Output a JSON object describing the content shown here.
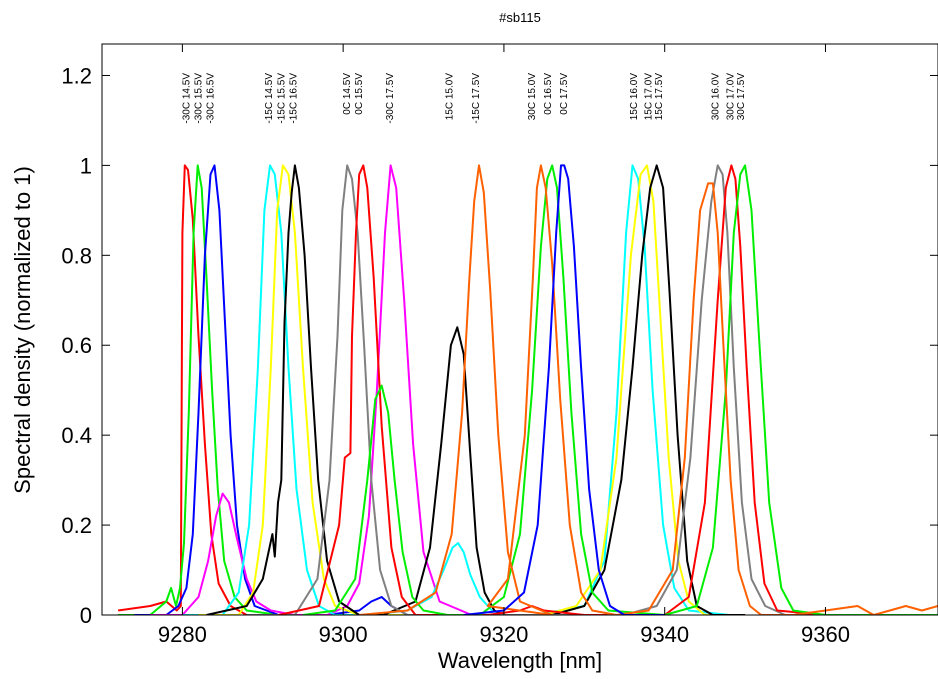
{
  "chart_data": {
    "type": "line",
    "title": "#sb115",
    "xlabel": "Wavelength [nm]",
    "ylabel": "Spectral density (normalized to 1)",
    "xlim": [
      9270,
      9374
    ],
    "ylim": [
      0,
      1.27
    ],
    "xticks": [
      9280,
      9300,
      9320,
      9340,
      9360
    ],
    "xtick_labels": [
      "9280",
      "9300",
      "9320",
      "9340",
      "9360"
    ],
    "yticks": [
      0,
      0.2,
      0.4,
      0.6,
      0.8,
      1,
      1.2
    ],
    "ytick_labels": [
      "0",
      "0.2",
      "0.4",
      "0.6",
      "0.8",
      "1",
      "1.2"
    ],
    "grid": false,
    "peak_labels": [
      {
        "text": "-30C 14.5V",
        "x": 9280.5
      },
      {
        "text": "-30C 15.5V",
        "x": 9282.0
      },
      {
        "text": "-30C 16.5V",
        "x": 9283.5
      },
      {
        "text": "-15C 14.5V",
        "x": 9290.8
      },
      {
        "text": "-15C 15.5V",
        "x": 9292.3
      },
      {
        "text": "-15C 16.5V",
        "x": 9293.8
      },
      {
        "text": "0C 14.5V",
        "x": 9300.5
      },
      {
        "text": "0C 15.5V",
        "x": 9302.0
      },
      {
        "text": "-30C 17.5V",
        "x": 9305.8
      },
      {
        "text": "15C 15.0V",
        "x": 9313.2
      },
      {
        "text": "-15C 17.5V",
        "x": 9316.5
      },
      {
        "text": "30C 15.0V",
        "x": 9323.5
      },
      {
        "text": "0C 16.5V",
        "x": 9325.5
      },
      {
        "text": "0C 17.5V",
        "x": 9327.5
      },
      {
        "text": "15C 16.0V",
        "x": 9336.2
      },
      {
        "text": "15C 17.0V",
        "x": 9338.0
      },
      {
        "text": "15C 17.5V",
        "x": 9339.3
      },
      {
        "text": "30C 16.0V",
        "x": 9346.3
      },
      {
        "text": "30C 17.0V",
        "x": 9348.2
      },
      {
        "text": "30C 17.5V",
        "x": 9349.5
      }
    ],
    "series": [
      {
        "color": "#ff0000",
        "x": [
          9272,
          9276,
          9278,
          9279.3,
          9279.8,
          9280.0,
          9280.3,
          9280.7,
          9281.3,
          9282.0,
          9282.8,
          9283.6,
          9284.5,
          9286,
          9288,
          9292,
          9300
        ],
        "y": [
          0.01,
          0.02,
          0.03,
          0.01,
          0.02,
          0.85,
          1.0,
          0.99,
          0.88,
          0.62,
          0.38,
          0.18,
          0.07,
          0.02,
          0.0,
          0.0,
          0.0
        ]
      },
      {
        "color": "#00ee00",
        "x": [
          9272,
          9276,
          9278.0,
          9278.6,
          9279.2,
          9279.7,
          9280.2,
          9280.8,
          9281.4,
          9281.9,
          9282.4,
          9283.0,
          9283.7,
          9284.4,
          9285.2,
          9286.5,
          9288,
          9292,
          9300
        ],
        "y": [
          0.0,
          0.0,
          0.03,
          0.06,
          0.02,
          0.06,
          0.16,
          0.45,
          0.85,
          1.0,
          0.95,
          0.75,
          0.5,
          0.28,
          0.12,
          0.04,
          0.01,
          0.0,
          0.0
        ]
      },
      {
        "color": "#0000ff",
        "x": [
          9274,
          9278,
          9279.5,
          9280.5,
          9281.3,
          9282.0,
          9282.8,
          9283.5,
          9284.0,
          9284.6,
          9285.3,
          9286.0,
          9286.8,
          9287.8,
          9289,
          9292,
          9298,
          9302,
          9303.5,
          9304.8,
          9306.0,
          9308,
          9312,
          9320
        ],
        "y": [
          0.0,
          0.0,
          0.02,
          0.06,
          0.18,
          0.45,
          0.8,
          0.98,
          1.0,
          0.9,
          0.65,
          0.4,
          0.2,
          0.08,
          0.02,
          0.0,
          0.0,
          0.01,
          0.03,
          0.04,
          0.02,
          0.0,
          0.0,
          0.0
        ]
      },
      {
        "color": "#ff00ff",
        "x": [
          9276,
          9280,
          9282.0,
          9283.2,
          9284.2,
          9285.0,
          9285.8,
          9286.8,
          9288.0,
          9289.2,
          9291,
          9294,
          9298,
          9300.5,
          9302.0,
          9303.2,
          9304.2,
          9305.2,
          9305.9,
          9306.6,
          9307.6,
          9308.7,
          9310,
          9312,
          9316,
          9320
        ],
        "y": [
          0.0,
          0.0,
          0.04,
          0.12,
          0.22,
          0.27,
          0.25,
          0.17,
          0.08,
          0.03,
          0.01,
          0.0,
          0.0,
          0.02,
          0.07,
          0.22,
          0.5,
          0.85,
          1.0,
          0.95,
          0.7,
          0.38,
          0.14,
          0.03,
          0.0,
          0.0
        ]
      },
      {
        "color": "#00ffff",
        "x": [
          9280,
          9285,
          9287.0,
          9288.3,
          9289.4,
          9290.2,
          9290.9,
          9291.5,
          9292.3,
          9293.2,
          9294.2,
          9295.5,
          9297.0,
          9299,
          9303,
          9308,
          9311.0,
          9312.5,
          9313.6,
          9314.3,
          9315.0,
          9315.8,
          9317.0,
          9318.5,
          9320,
          9324,
          9330,
          9332.5,
          9334.0,
          9335.2,
          9336.0,
          9336.7,
          9337.5,
          9338.5,
          9339.8,
          9341.2,
          9343,
          9348
        ],
        "y": [
          0.0,
          0.0,
          0.05,
          0.2,
          0.55,
          0.9,
          1.0,
          0.98,
          0.85,
          0.55,
          0.28,
          0.1,
          0.02,
          0.0,
          0.0,
          0.01,
          0.04,
          0.1,
          0.15,
          0.16,
          0.14,
          0.09,
          0.04,
          0.01,
          0.0,
          0.0,
          0.02,
          0.12,
          0.45,
          0.85,
          1.0,
          0.97,
          0.82,
          0.5,
          0.2,
          0.06,
          0.01,
          0.0
        ]
      },
      {
        "color": "#ffff00",
        "x": [
          9282,
          9287,
          9288.8,
          9290.0,
          9291.0,
          9291.8,
          9292.5,
          9293.2,
          9294.0,
          9295.0,
          9296.2,
          9297.6,
          9299,
          9302,
          9325,
          9329,
          9332.0,
          9334.0,
          9335.8,
          9337.0,
          9337.8,
          9338.6,
          9339.5,
          9340.5,
          9341.7,
          9343.0,
          9345,
          9350
        ],
        "y": [
          0.0,
          0.0,
          0.05,
          0.2,
          0.55,
          0.9,
          1.0,
          0.98,
          0.85,
          0.55,
          0.25,
          0.08,
          0.02,
          0.0,
          0.0,
          0.02,
          0.1,
          0.35,
          0.8,
          0.98,
          1.0,
          0.92,
          0.65,
          0.35,
          0.12,
          0.03,
          0.0,
          0.0
        ]
      },
      {
        "color": "#000000",
        "x": [
          9283,
          9288.0,
          9290.0,
          9291.2,
          9291.5,
          9291.9,
          9292.3,
          9292.7,
          9293.2,
          9293.6,
          9294.0,
          9294.5,
          9295.2,
          9296.0,
          9296.9,
          9298.0,
          9299.5,
          9302,
          9305,
          9309.0,
          9310.8,
          9312.2,
          9313.4,
          9314.2,
          9315.0,
          9315.8,
          9316.6,
          9317.6,
          9318.8,
          9320,
          9326,
          9330.0,
          9332.5,
          9334.6,
          9336.0,
          9337.2,
          9338.2,
          9339.0,
          9339.8,
          9340.6,
          9341.6,
          9342.8,
          9344,
          9346,
          9350
        ],
        "y": [
          0.0,
          0.02,
          0.08,
          0.18,
          0.13,
          0.25,
          0.3,
          0.65,
          0.85,
          0.94,
          1.0,
          0.95,
          0.8,
          0.55,
          0.3,
          0.12,
          0.03,
          0.0,
          0.0,
          0.03,
          0.15,
          0.38,
          0.6,
          0.64,
          0.58,
          0.36,
          0.15,
          0.05,
          0.01,
          0.0,
          0.0,
          0.02,
          0.1,
          0.3,
          0.55,
          0.8,
          0.95,
          1.0,
          0.95,
          0.72,
          0.4,
          0.12,
          0.02,
          0.0,
          0.0
        ]
      },
      {
        "color": "#808080",
        "x": [
          9288,
          9294,
          9296.8,
          9298.3,
          9299.3,
          9299.9,
          9300.5,
          9301.1,
          9301.8,
          9302.6,
          9303.5,
          9304.6,
          9306.0,
          9308,
          9312,
          9335,
          9339,
          9341.5,
          9343.2,
          9344.6,
          9345.8,
          9346.6,
          9347.2,
          9347.8,
          9348.6,
          9349.6,
          9350.8,
          9352.5,
          9355,
          9360
        ],
        "y": [
          0.0,
          0.0,
          0.08,
          0.3,
          0.62,
          0.9,
          1.0,
          0.97,
          0.85,
          0.6,
          0.3,
          0.1,
          0.02,
          0.0,
          0.0,
          0.0,
          0.02,
          0.1,
          0.35,
          0.7,
          0.92,
          1.0,
          0.98,
          0.85,
          0.55,
          0.25,
          0.08,
          0.02,
          0.0,
          0.0
        ]
      },
      {
        "color": "#ff0000",
        "x": [
          9292,
          9297,
          9299.5,
          9300.2,
          9300.9,
          9301.1,
          9301.6,
          9302.0,
          9302.5,
          9303.0,
          9303.8,
          9304.8,
          9306.0,
          9307.3,
          9309,
          9312,
          9318,
          9322,
          9323.5,
          9325,
          9330,
          9340,
          9343.0,
          9345.0,
          9346.6,
          9347.6,
          9348.3,
          9348.8,
          9349.4,
          9350.2,
          9351.2,
          9352.4,
          9354,
          9360,
          9374
        ],
        "y": [
          0.0,
          0.02,
          0.2,
          0.35,
          0.36,
          0.62,
          0.85,
          0.98,
          1.0,
          0.95,
          0.75,
          0.42,
          0.15,
          0.04,
          0.0,
          0.0,
          0.0,
          0.01,
          0.02,
          0.01,
          0.0,
          0.0,
          0.04,
          0.25,
          0.7,
          0.95,
          1.0,
          0.97,
          0.82,
          0.55,
          0.25,
          0.07,
          0.01,
          0.0,
          0.0
        ]
      },
      {
        "color": "#00ee00",
        "x": [
          9295,
          9299,
          9301.5,
          9303.0,
          9304.0,
          9304.8,
          9305.6,
          9306.4,
          9307.4,
          9308.6,
          9310,
          9313,
          9317,
          9320.0,
          9322.0,
          9323.5,
          9324.6,
          9325.4,
          9326.0,
          9326.6,
          9327.4,
          9328.4,
          9329.6,
          9331,
          9333,
          9340,
          9344.0,
          9346.0,
          9347.6,
          9348.6,
          9349.4,
          9350.0,
          9350.8,
          9351.8,
          9353.0,
          9354.5,
          9356,
          9360,
          9374
        ],
        "y": [
          0.0,
          0.01,
          0.08,
          0.3,
          0.48,
          0.51,
          0.45,
          0.3,
          0.14,
          0.04,
          0.01,
          0.0,
          0.0,
          0.04,
          0.18,
          0.5,
          0.82,
          0.97,
          1.0,
          0.95,
          0.75,
          0.45,
          0.18,
          0.05,
          0.01,
          0.0,
          0.02,
          0.15,
          0.5,
          0.85,
          0.98,
          1.0,
          0.9,
          0.6,
          0.25,
          0.06,
          0.01,
          0.0,
          0.0
        ]
      },
      {
        "color": "#ff6000",
        "x": [
          9302,
          9308,
          9311.5,
          9313.5,
          9314.8,
          9315.7,
          9316.3,
          9316.9,
          9317.5,
          9318.3,
          9319.3,
          9320.5,
          9322,
          9326,
          9318,
          9320.5,
          9322.6,
          9323.6,
          9324.1,
          9324.6,
          9325.2,
          9326.0,
          9327.0,
          9328.2,
          9329.6,
          9331,
          9334,
          9338.0,
          9341.0,
          9342.5,
          9343.6,
          9344.4,
          9345.4,
          9346.0,
          9346.6,
          9347.3,
          9348.2,
          9349.2,
          9350.6,
          9352,
          9356,
          9360,
          9364,
          9366,
          9368,
          9370,
          9372,
          9374
        ],
        "y": [
          0.0,
          0.01,
          0.05,
          0.18,
          0.45,
          0.75,
          0.92,
          1.0,
          0.94,
          0.72,
          0.4,
          0.14,
          0.03,
          0.0,
          0.02,
          0.08,
          0.4,
          0.75,
          0.95,
          1.0,
          0.95,
          0.78,
          0.48,
          0.2,
          0.05,
          0.01,
          0.0,
          0.01,
          0.1,
          0.35,
          0.7,
          0.9,
          0.96,
          0.96,
          0.85,
          0.6,
          0.3,
          0.1,
          0.02,
          0.0,
          0.0,
          0.01,
          0.02,
          0.0,
          0.01,
          0.02,
          0.01,
          0.02
        ]
      },
      {
        "color": "#0000ff",
        "x": [
          9315,
          9320,
          9322.5,
          9324.2,
          9325.6,
          9326.5,
          9327.1,
          9327.5,
          9328.0,
          9328.7,
          9329.6,
          9330.6,
          9331.8,
          9333.2,
          9335,
          9340
        ],
        "y": [
          0.0,
          0.01,
          0.05,
          0.2,
          0.55,
          0.85,
          1.0,
          1.0,
          0.97,
          0.82,
          0.55,
          0.28,
          0.1,
          0.02,
          0.0,
          0.0
        ]
      }
    ]
  }
}
